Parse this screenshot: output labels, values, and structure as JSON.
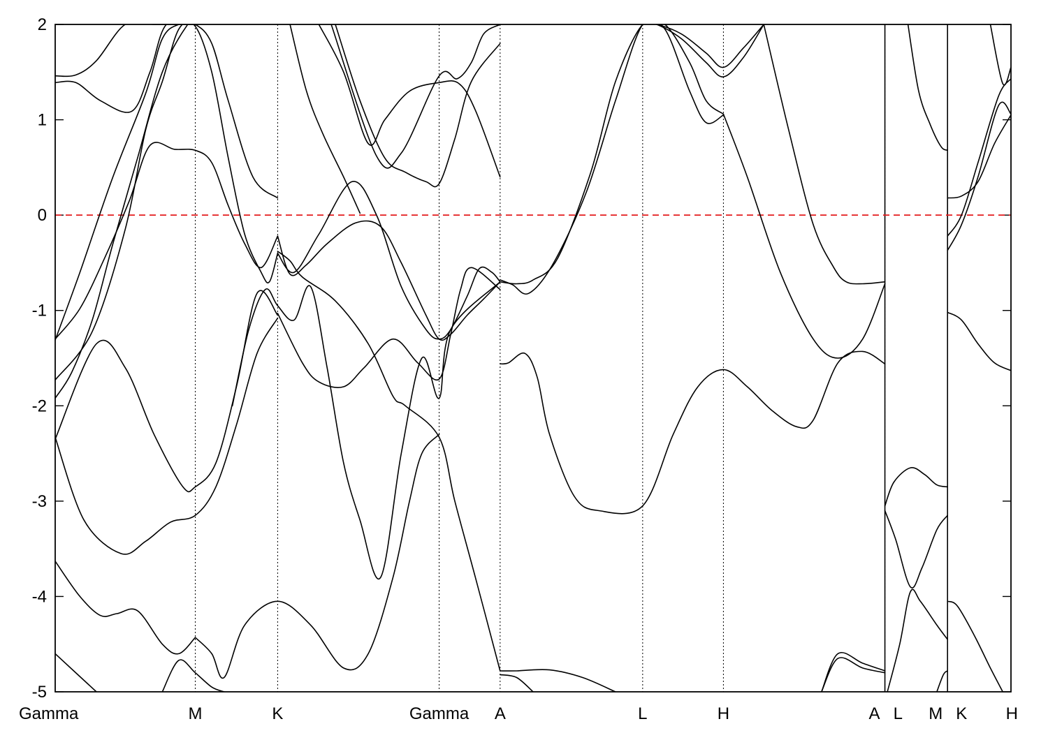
{
  "chart_data": {
    "type": "line",
    "title": "",
    "xlabel": "",
    "ylabel": "",
    "ylim": [
      -5,
      2
    ],
    "xlim": [
      0,
      11.6
    ],
    "yticks": [
      -5,
      -4,
      -3,
      -2,
      -1,
      0,
      1,
      2
    ],
    "grid": false,
    "fermi_level": 0,
    "colors": {
      "bands": "#000000",
      "fermi": "#e41a1c"
    },
    "kpoints": [
      {
        "label": "Gamma",
        "x": 0.0,
        "separator": false
      },
      {
        "label": "M",
        "x": 1.7,
        "separator": false
      },
      {
        "label": "K",
        "x": 2.7,
        "separator": false
      },
      {
        "label": "Gamma",
        "x": 4.66,
        "separator": false
      },
      {
        "label": "A",
        "x": 5.4,
        "separator": false
      },
      {
        "label": "L",
        "x": 7.13,
        "separator": false
      },
      {
        "label": "H",
        "x": 8.11,
        "separator": false
      },
      {
        "label": "A",
        "x": 10.07,
        "separator": true
      },
      {
        "label": "L",
        "x": 10.07,
        "separator": false
      },
      {
        "label": "M",
        "x": 10.83,
        "separator": true
      },
      {
        "label": "K",
        "x": 10.83,
        "separator": false
      },
      {
        "label": "H",
        "x": 11.6,
        "separator": false
      }
    ],
    "series": [
      {
        "x": [
          0,
          0.25,
          0.5,
          0.85,
          1.2,
          1.45,
          1.7
        ],
        "y": [
          1.46,
          1.47,
          1.62,
          2.0,
          2.0,
          2.0,
          2.0
        ]
      },
      {
        "x": [
          0,
          0.25,
          0.55,
          0.93,
          1.15,
          1.35,
          1.7
        ],
        "y": [
          1.39,
          1.39,
          1.2,
          1.09,
          1.5,
          2.0,
          2.0
        ]
      },
      {
        "x": [
          0,
          0.3,
          0.7,
          1.1,
          1.3,
          1.5,
          1.7,
          1.9,
          2.1,
          2.4,
          2.7
        ],
        "y": [
          -1.31,
          -0.6,
          0.4,
          1.28,
          1.85,
          2.0,
          2.0,
          1.8,
          1.2,
          0.4,
          0.18
        ]
      },
      {
        "x": [
          0,
          0.3,
          0.6,
          0.9,
          1.15,
          1.45,
          1.7,
          1.9,
          2.1,
          2.3,
          2.5,
          2.7
        ],
        "y": [
          -1.3,
          -0.98,
          -0.45,
          0.15,
          0.73,
          0.69,
          0.68,
          0.55,
          0.1,
          -0.3,
          -0.55,
          -0.22
        ]
      },
      {
        "x": [
          0,
          0.45,
          0.85,
          1.1,
          1.3,
          1.5,
          1.7,
          1.9,
          2.1,
          2.3,
          2.5,
          2.6,
          2.7
        ],
        "y": [
          -1.73,
          -1.22,
          -0.15,
          0.9,
          1.4,
          1.95,
          1.98,
          1.5,
          0.6,
          -0.2,
          -0.6,
          -0.7,
          -0.4
        ]
      },
      {
        "x": [
          0,
          0.2,
          0.45,
          0.7,
          1.0,
          1.3,
          1.6,
          1.7
        ],
        "y": [
          -1.92,
          -1.65,
          -1.1,
          -0.3,
          0.6,
          1.5,
          1.99,
          2.0
        ]
      },
      {
        "x": [
          0,
          0.5,
          0.85,
          1.2,
          1.55,
          1.7,
          1.95,
          2.2,
          2.45,
          2.7
        ],
        "y": [
          -2.35,
          -1.35,
          -1.6,
          -2.3,
          -2.85,
          -2.85,
          -2.6,
          -1.8,
          -0.82,
          -1.05
        ]
      },
      {
        "x": [
          0,
          0.35,
          0.8,
          1.1,
          1.4,
          1.7,
          1.95,
          2.2,
          2.45,
          2.7
        ],
        "y": [
          -2.33,
          -3.2,
          -3.55,
          -3.42,
          -3.22,
          -3.15,
          -2.85,
          -2.2,
          -1.45,
          -1.08
        ]
      },
      {
        "x": [
          0,
          0.3,
          0.55,
          0.75,
          1.0,
          1.3,
          1.5,
          1.7
        ],
        "y": [
          -3.63,
          -4.0,
          -4.2,
          -4.18,
          -4.15,
          -4.5,
          -4.6,
          -4.43
        ]
      },
      {
        "x": [
          0,
          0.5
        ],
        "y": [
          -4.6,
          -5.0
        ]
      },
      {
        "x": [
          1.3,
          1.5,
          1.7,
          1.9,
          2.05
        ],
        "y": [
          -5.0,
          -4.67,
          -4.8,
          -4.95,
          -5.0
        ]
      },
      {
        "x": [
          1.7,
          1.9,
          2.05,
          2.3,
          2.7,
          3.1,
          3.5,
          3.8,
          4.1,
          4.3,
          4.45,
          4.66
        ],
        "y": [
          -4.43,
          -4.6,
          -4.85,
          -4.3,
          -4.05,
          -4.3,
          -4.75,
          -4.6,
          -3.8,
          -3.0,
          -2.5,
          -2.3
        ]
      },
      {
        "x": [
          2.7,
          2.85,
          3.0,
          3.4,
          3.8,
          4.1,
          4.25,
          4.66,
          4.85,
          5.1,
          5.4
        ],
        "y": [
          -0.38,
          -0.48,
          -0.65,
          -0.9,
          -1.35,
          -1.9,
          -2.0,
          -2.33,
          -3.0,
          -3.8,
          -4.78
        ]
      },
      {
        "x": [
          2.7,
          2.85,
          3.05,
          3.3,
          3.65,
          3.95,
          4.2,
          4.5,
          4.66,
          4.8,
          5.0,
          5.2,
          5.4
        ],
        "y": [
          -0.22,
          -0.62,
          -0.52,
          -0.3,
          -0.08,
          -0.12,
          -0.5,
          -1.05,
          -1.3,
          -1.25,
          -1.05,
          -0.88,
          -0.7
        ]
      },
      {
        "x": [
          2.7,
          2.9,
          3.2,
          3.6,
          3.9,
          4.2,
          4.5,
          4.66,
          4.8,
          5.0,
          5.15,
          5.3,
          5.4
        ],
        "y": [
          -0.4,
          -0.6,
          -0.2,
          0.35,
          0.0,
          -0.75,
          -1.2,
          -1.3,
          -1.2,
          -0.85,
          -0.56,
          -0.6,
          -0.7
        ]
      },
      {
        "x": [
          2.7,
          3.0,
          3.2,
          3.5,
          3.75,
          4.1,
          4.4,
          4.66,
          4.8,
          4.92,
          5.05,
          5.4
        ],
        "y": [
          -1.03,
          -1.55,
          -1.75,
          -1.8,
          -1.6,
          -1.3,
          -1.55,
          -1.72,
          -1.25,
          -0.78,
          -0.55,
          -0.78
        ]
      },
      {
        "x": [
          2.15,
          2.35,
          2.55,
          2.7,
          2.9,
          3.1,
          3.3,
          3.5,
          3.7,
          3.95,
          4.2,
          4.45,
          4.66,
          4.8,
          5.4
        ],
        "y": [
          -2.0,
          -1.2,
          -0.78,
          -0.95,
          -1.1,
          -0.75,
          -1.6,
          -2.6,
          -3.2,
          -3.8,
          -2.5,
          -1.5,
          -1.92,
          -1.2,
          -0.7
        ]
      },
      {
        "x": [
          3.4,
          3.7,
          4.0,
          4.25,
          4.5,
          4.66,
          4.85,
          5.05,
          5.4
        ],
        "y": [
          2.0,
          1.2,
          0.6,
          0.45,
          0.35,
          0.33,
          0.8,
          1.4,
          1.8
        ]
      },
      {
        "x": [
          3.2,
          3.5,
          3.8,
          4.0,
          4.3,
          4.66,
          4.9,
          5.1,
          5.4
        ],
        "y": [
          2.0,
          1.5,
          0.75,
          1.0,
          1.3,
          1.39,
          1.38,
          1.1,
          0.4
        ]
      },
      {
        "x": [
          3.35,
          3.9,
          4.2,
          4.66,
          4.88,
          5.05,
          5.2,
          5.4
        ],
        "y": [
          2.0,
          0.62,
          0.65,
          1.46,
          1.43,
          1.6,
          1.9,
          2.0
        ]
      },
      {
        "x": [
          2.85,
          3.05,
          3.25,
          3.5,
          3.7
        ],
        "y": [
          2.0,
          1.3,
          0.85,
          0.4,
          0.02
        ]
      },
      {
        "x": [
          5.4,
          5.6,
          5.8,
          6.1,
          6.5,
          6.8,
          7.13,
          7.4,
          7.7,
          7.9,
          8.11
        ],
        "y": [
          -0.7,
          -0.72,
          -0.68,
          -0.45,
          0.45,
          1.4,
          2.0,
          2.0,
          1.6,
          1.2,
          1.06
        ]
      },
      {
        "x": [
          5.4,
          5.55,
          5.75,
          6.05,
          6.45,
          6.8,
          7.13,
          7.4,
          7.7,
          7.9,
          8.11
        ],
        "y": [
          -0.68,
          -0.73,
          -0.82,
          -0.5,
          0.25,
          1.2,
          2.0,
          1.95,
          1.3,
          0.97,
          1.05
        ]
      },
      {
        "x": [
          7.13,
          7.3,
          7.6,
          7.9,
          8.11,
          8.35,
          8.6
        ],
        "y": [
          2.0,
          2.0,
          1.9,
          1.7,
          1.55,
          1.75,
          2.0
        ]
      },
      {
        "x": [
          7.13,
          7.3,
          7.6,
          7.9,
          8.11,
          8.35,
          8.6
        ],
        "y": [
          2.0,
          2.0,
          1.85,
          1.6,
          1.45,
          1.65,
          2.0
        ]
      },
      {
        "x": [
          8.11,
          8.4,
          8.8,
          9.2,
          9.5,
          9.8,
          10.07
        ],
        "y": [
          1.06,
          0.4,
          -0.6,
          -1.3,
          -1.5,
          -1.3,
          -0.72
        ]
      },
      {
        "x": [
          8.6,
          8.9,
          9.2,
          9.45,
          9.6,
          9.8,
          10.07
        ],
        "y": [
          2.0,
          0.9,
          -0.1,
          -0.55,
          -0.7,
          -0.72,
          -0.7
        ]
      },
      {
        "x": [
          5.4,
          5.5,
          5.7,
          5.85,
          6.0,
          6.3,
          6.6,
          7.13,
          7.5,
          7.8,
          8.11,
          8.4,
          8.7,
          9.0,
          9.2,
          9.5,
          9.8,
          10.07
        ],
        "y": [
          -1.56,
          -1.55,
          -1.45,
          -1.7,
          -2.3,
          -2.95,
          -3.1,
          -3.05,
          -2.3,
          -1.8,
          -1.62,
          -1.8,
          -2.05,
          -2.22,
          -2.15,
          -1.55,
          -1.43,
          -1.56
        ]
      },
      {
        "x": [
          5.4,
          5.6,
          6.0,
          6.4,
          6.8
        ],
        "y": [
          -4.78,
          -4.78,
          -4.77,
          -4.85,
          -5.0
        ]
      },
      {
        "x": [
          5.4,
          5.6,
          5.8
        ],
        "y": [
          -4.82,
          -4.85,
          -5.0
        ]
      },
      {
        "x": [
          9.3,
          9.5,
          9.8,
          10.07
        ],
        "y": [
          -5.0,
          -4.65,
          -4.75,
          -4.8
        ]
      },
      {
        "x": [
          9.3,
          9.5,
          9.8,
          10.07
        ],
        "y": [
          -5.0,
          -4.6,
          -4.7,
          -4.78
        ]
      },
      {
        "x": [
          10.07,
          10.18,
          10.38,
          10.55,
          10.7,
          10.83
        ],
        "y": [
          -3.05,
          -2.8,
          -2.65,
          -2.72,
          -2.83,
          -2.85
        ]
      },
      {
        "x": [
          10.07,
          10.2,
          10.38,
          10.52,
          10.7,
          10.83
        ],
        "y": [
          -3.1,
          -3.4,
          -3.9,
          -3.7,
          -3.3,
          -3.15
        ]
      },
      {
        "x": [
          10.1,
          10.25,
          10.38,
          10.5,
          10.7,
          10.83
        ],
        "y": [
          -5.0,
          -4.5,
          -3.95,
          -4.05,
          -4.3,
          -4.45
        ]
      },
      {
        "x": [
          10.7,
          10.78,
          10.83
        ],
        "y": [
          -5.0,
          -4.82,
          -4.78
        ]
      },
      {
        "x": [
          10.35,
          10.48,
          10.62,
          10.75,
          10.83
        ],
        "y": [
          2.0,
          1.3,
          0.95,
          0.72,
          0.68
        ]
      },
      {
        "x": [
          10.83,
          11.0,
          11.2,
          11.4,
          11.6
        ],
        "y": [
          0.18,
          0.2,
          0.35,
          0.75,
          1.05
        ]
      },
      {
        "x": [
          10.83,
          11.0,
          11.2,
          11.45,
          11.6
        ],
        "y": [
          -0.22,
          0.0,
          0.55,
          1.25,
          1.43
        ]
      },
      {
        "x": [
          10.83,
          11.0,
          11.2,
          11.45,
          11.6
        ],
        "y": [
          -0.37,
          -0.1,
          0.4,
          1.15,
          1.06
        ]
      },
      {
        "x": [
          11.35,
          11.5,
          11.6
        ],
        "y": [
          2.0,
          1.38,
          1.55
        ]
      },
      {
        "x": [
          10.83,
          11.0,
          11.2,
          11.4,
          11.6
        ],
        "y": [
          -1.02,
          -1.1,
          -1.35,
          -1.55,
          -1.63
        ]
      },
      {
        "x": [
          10.83,
          10.95,
          11.15,
          11.35,
          11.5
        ],
        "y": [
          -4.05,
          -4.1,
          -4.4,
          -4.75,
          -5.0
        ]
      }
    ]
  }
}
